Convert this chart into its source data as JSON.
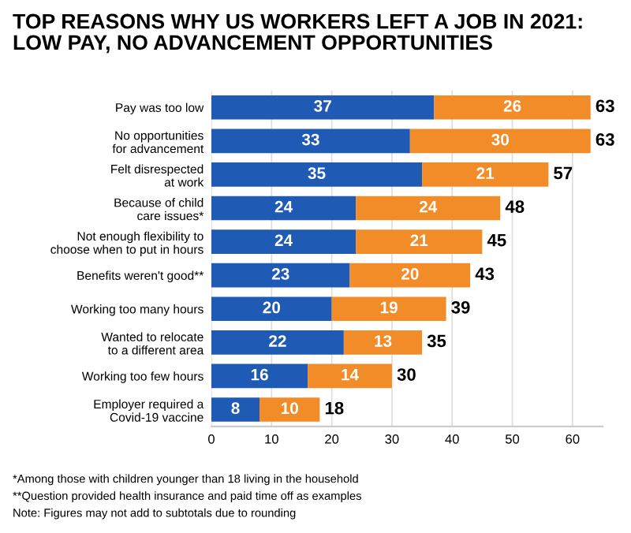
{
  "chart_data": {
    "type": "bar",
    "orientation": "horizontal",
    "stacked": true,
    "title": "TOP REASONS WHY US WORKERS LEFT A JOB IN 2021:\nLOW PAY, NO ADVANCEMENT OPPORTUNITIES",
    "categories": [
      "Pay was too low",
      "No opportunities\nfor advancement",
      "Felt disrespected\nat work",
      "Because of child\ncare issues*",
      "Not enough flexibility to\nchoose when to put in hours",
      "Benefits weren't good**",
      "Working too many hours",
      "Wanted to relocate\nto a different area",
      "Working too few hours",
      "Employer required a\nCovid-19 vaccine"
    ],
    "series": [
      {
        "color": "#1f5bb5",
        "values": [
          37,
          33,
          35,
          24,
          24,
          23,
          20,
          22,
          16,
          8
        ]
      },
      {
        "color": "#f28c28",
        "values": [
          26,
          30,
          21,
          24,
          21,
          20,
          19,
          13,
          14,
          10
        ]
      }
    ],
    "totals": [
      "63",
      "63",
      "57",
      "48",
      "45",
      "43",
      "39",
      "35",
      "30",
      "18"
    ],
    "data_labels": true,
    "xlim": [
      0,
      65
    ],
    "xticks": [
      0,
      10,
      20,
      30,
      40,
      50,
      60
    ],
    "grid": "x",
    "legend": false,
    "annotations": [
      "*Among those with children younger than 18 living in the household",
      "**Question provided health insurance and paid time off as examples",
      "Note: Figures may not add to subtotals due to rounding"
    ]
  }
}
